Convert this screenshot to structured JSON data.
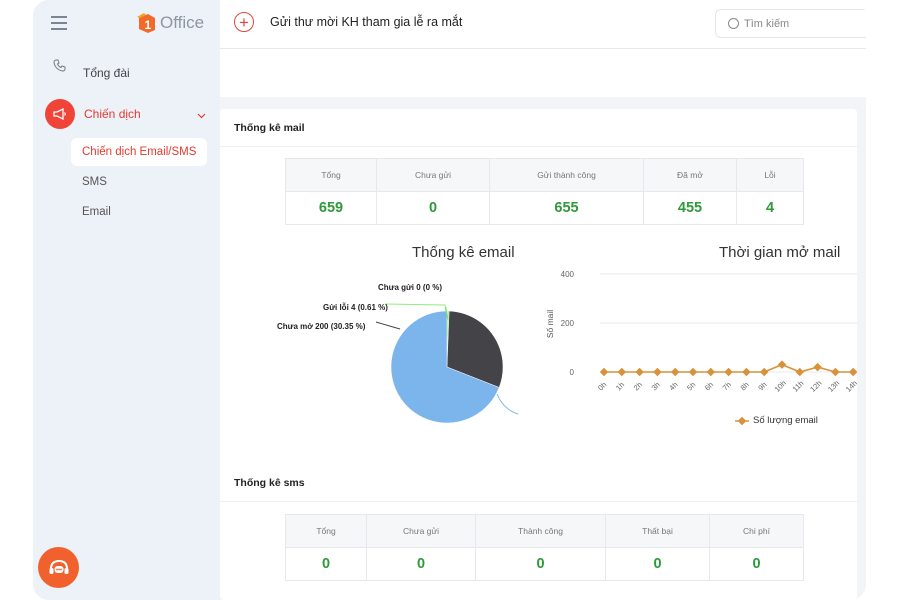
{
  "app": {
    "logo_text": "Office",
    "logo_mark_text": "1"
  },
  "sidebar": {
    "items": [
      {
        "label": "Tổng đài",
        "icon": "phone-icon"
      },
      {
        "label": "Chiến dịch",
        "icon": "megaphone-icon",
        "expanded": true
      }
    ],
    "subitems": [
      {
        "label": "Chiến dịch Email/SMS",
        "active": true
      },
      {
        "label": "SMS"
      },
      {
        "label": "Email"
      }
    ]
  },
  "header": {
    "title": "Gửi thư mời KH tham gia lễ ra mắt",
    "search_placeholder": "Tìm kiếm"
  },
  "mail_stats": {
    "section_title": "Thống kê mail",
    "headers": [
      "Tổng",
      "Chưa gửi",
      "Gửi thành công",
      "Đã mở",
      "Lỗi"
    ],
    "values": [
      "659",
      "0",
      "655",
      "455",
      "4"
    ]
  },
  "sms_stats": {
    "section_title": "Thống kê sms",
    "headers": [
      "Tổng",
      "Chưa gửi",
      "Thành công",
      "Thất bại",
      "Chi phí"
    ],
    "values": [
      "0",
      "0",
      "0",
      "0",
      "0"
    ]
  },
  "colors": {
    "accent": "#e5473c",
    "value_green": "#2e9a3a",
    "pie_blue": "#7cb5ec",
    "pie_dark": "#434348",
    "line_orange": "#d8923a"
  },
  "chart_data": [
    {
      "type": "pie",
      "title": "Thống kê email",
      "labels": [
        "Chưa gửi 0 (0 %)",
        "Gửi lỗi 4 (0.61 %)",
        "Chưa mở 200 (30.35 %)"
      ],
      "slices": [
        {
          "name": "Chưa gửi",
          "value": 0,
          "percent": 0,
          "color": "#7bd88b"
        },
        {
          "name": "Gửi lỗi",
          "value": 4,
          "percent": 0.61,
          "color": "#90ed7d"
        },
        {
          "name": "Chưa mở",
          "value": 200,
          "percent": 30.35,
          "color": "#434348"
        },
        {
          "name": "",
          "value": 455,
          "percent": 69.04,
          "color": "#7cb5ec"
        }
      ]
    },
    {
      "type": "line",
      "title": "Thời gian mở mail",
      "ylabel": "Số mail",
      "ylim": [
        0,
        400
      ],
      "yticks": [
        "0",
        "200",
        "400"
      ],
      "categories": [
        "0h",
        "1h",
        "2h",
        "3h",
        "4h",
        "5h",
        "6h",
        "7h",
        "8h",
        "9h",
        "10h",
        "11h",
        "12h",
        "13h",
        "14h"
      ],
      "series": [
        {
          "name": "Số lượng email",
          "values": [
            0,
            0,
            0,
            0,
            0,
            0,
            0,
            0,
            0,
            0,
            30,
            0,
            20,
            0,
            0
          ]
        }
      ]
    }
  ]
}
